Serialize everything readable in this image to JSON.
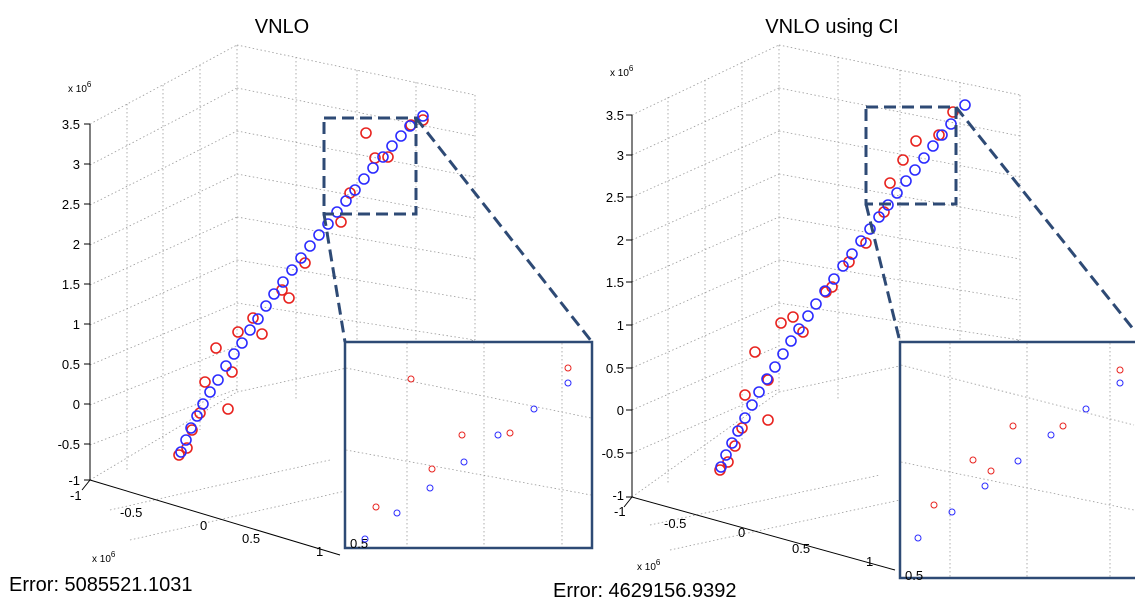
{
  "chart_data": [
    {
      "type": "scatter",
      "title": "VNLO",
      "error_text": "Error: 5085521.1031",
      "z_exponent_label": "x 10",
      "z_exponent_power": "6",
      "x_exponent_label": "x 10",
      "x_exponent_power": "6",
      "z_ticks": [
        "3.5",
        "3",
        "2.5",
        "2",
        "1.5",
        "1",
        "0.5",
        "0",
        "-0.5",
        "-1"
      ],
      "x_ticks": [
        "-1",
        "-0.5",
        "0",
        "0.5",
        "1"
      ],
      "inset_tick": "0.5",
      "zlim": [
        -1,
        3.5
      ],
      "series": [
        {
          "color": "#e8231f"
        },
        {
          "color": "#2b2bff"
        }
      ]
    },
    {
      "type": "scatter",
      "title": "VNLO using CI",
      "error_text": "Error: 4629156.9392",
      "z_exponent_label": "x 10",
      "z_exponent_power": "6",
      "x_exponent_label": "x 10",
      "x_exponent_power": "6",
      "z_ticks": [
        "3.5",
        "3",
        "2.5",
        "2",
        "1.5",
        "1",
        "0.5",
        "0",
        "-0.5",
        "-1"
      ],
      "x_ticks": [
        "-1",
        "-0.5",
        "0",
        "0.5",
        "1"
      ],
      "inset_tick": "0.5",
      "zlim": [
        -1,
        3.5
      ],
      "series": [
        {
          "color": "#e8231f"
        },
        {
          "color": "#2b2bff"
        }
      ]
    }
  ],
  "colors": {
    "zoom_box": "#2e4a75",
    "grid": "#9a9a9a"
  }
}
